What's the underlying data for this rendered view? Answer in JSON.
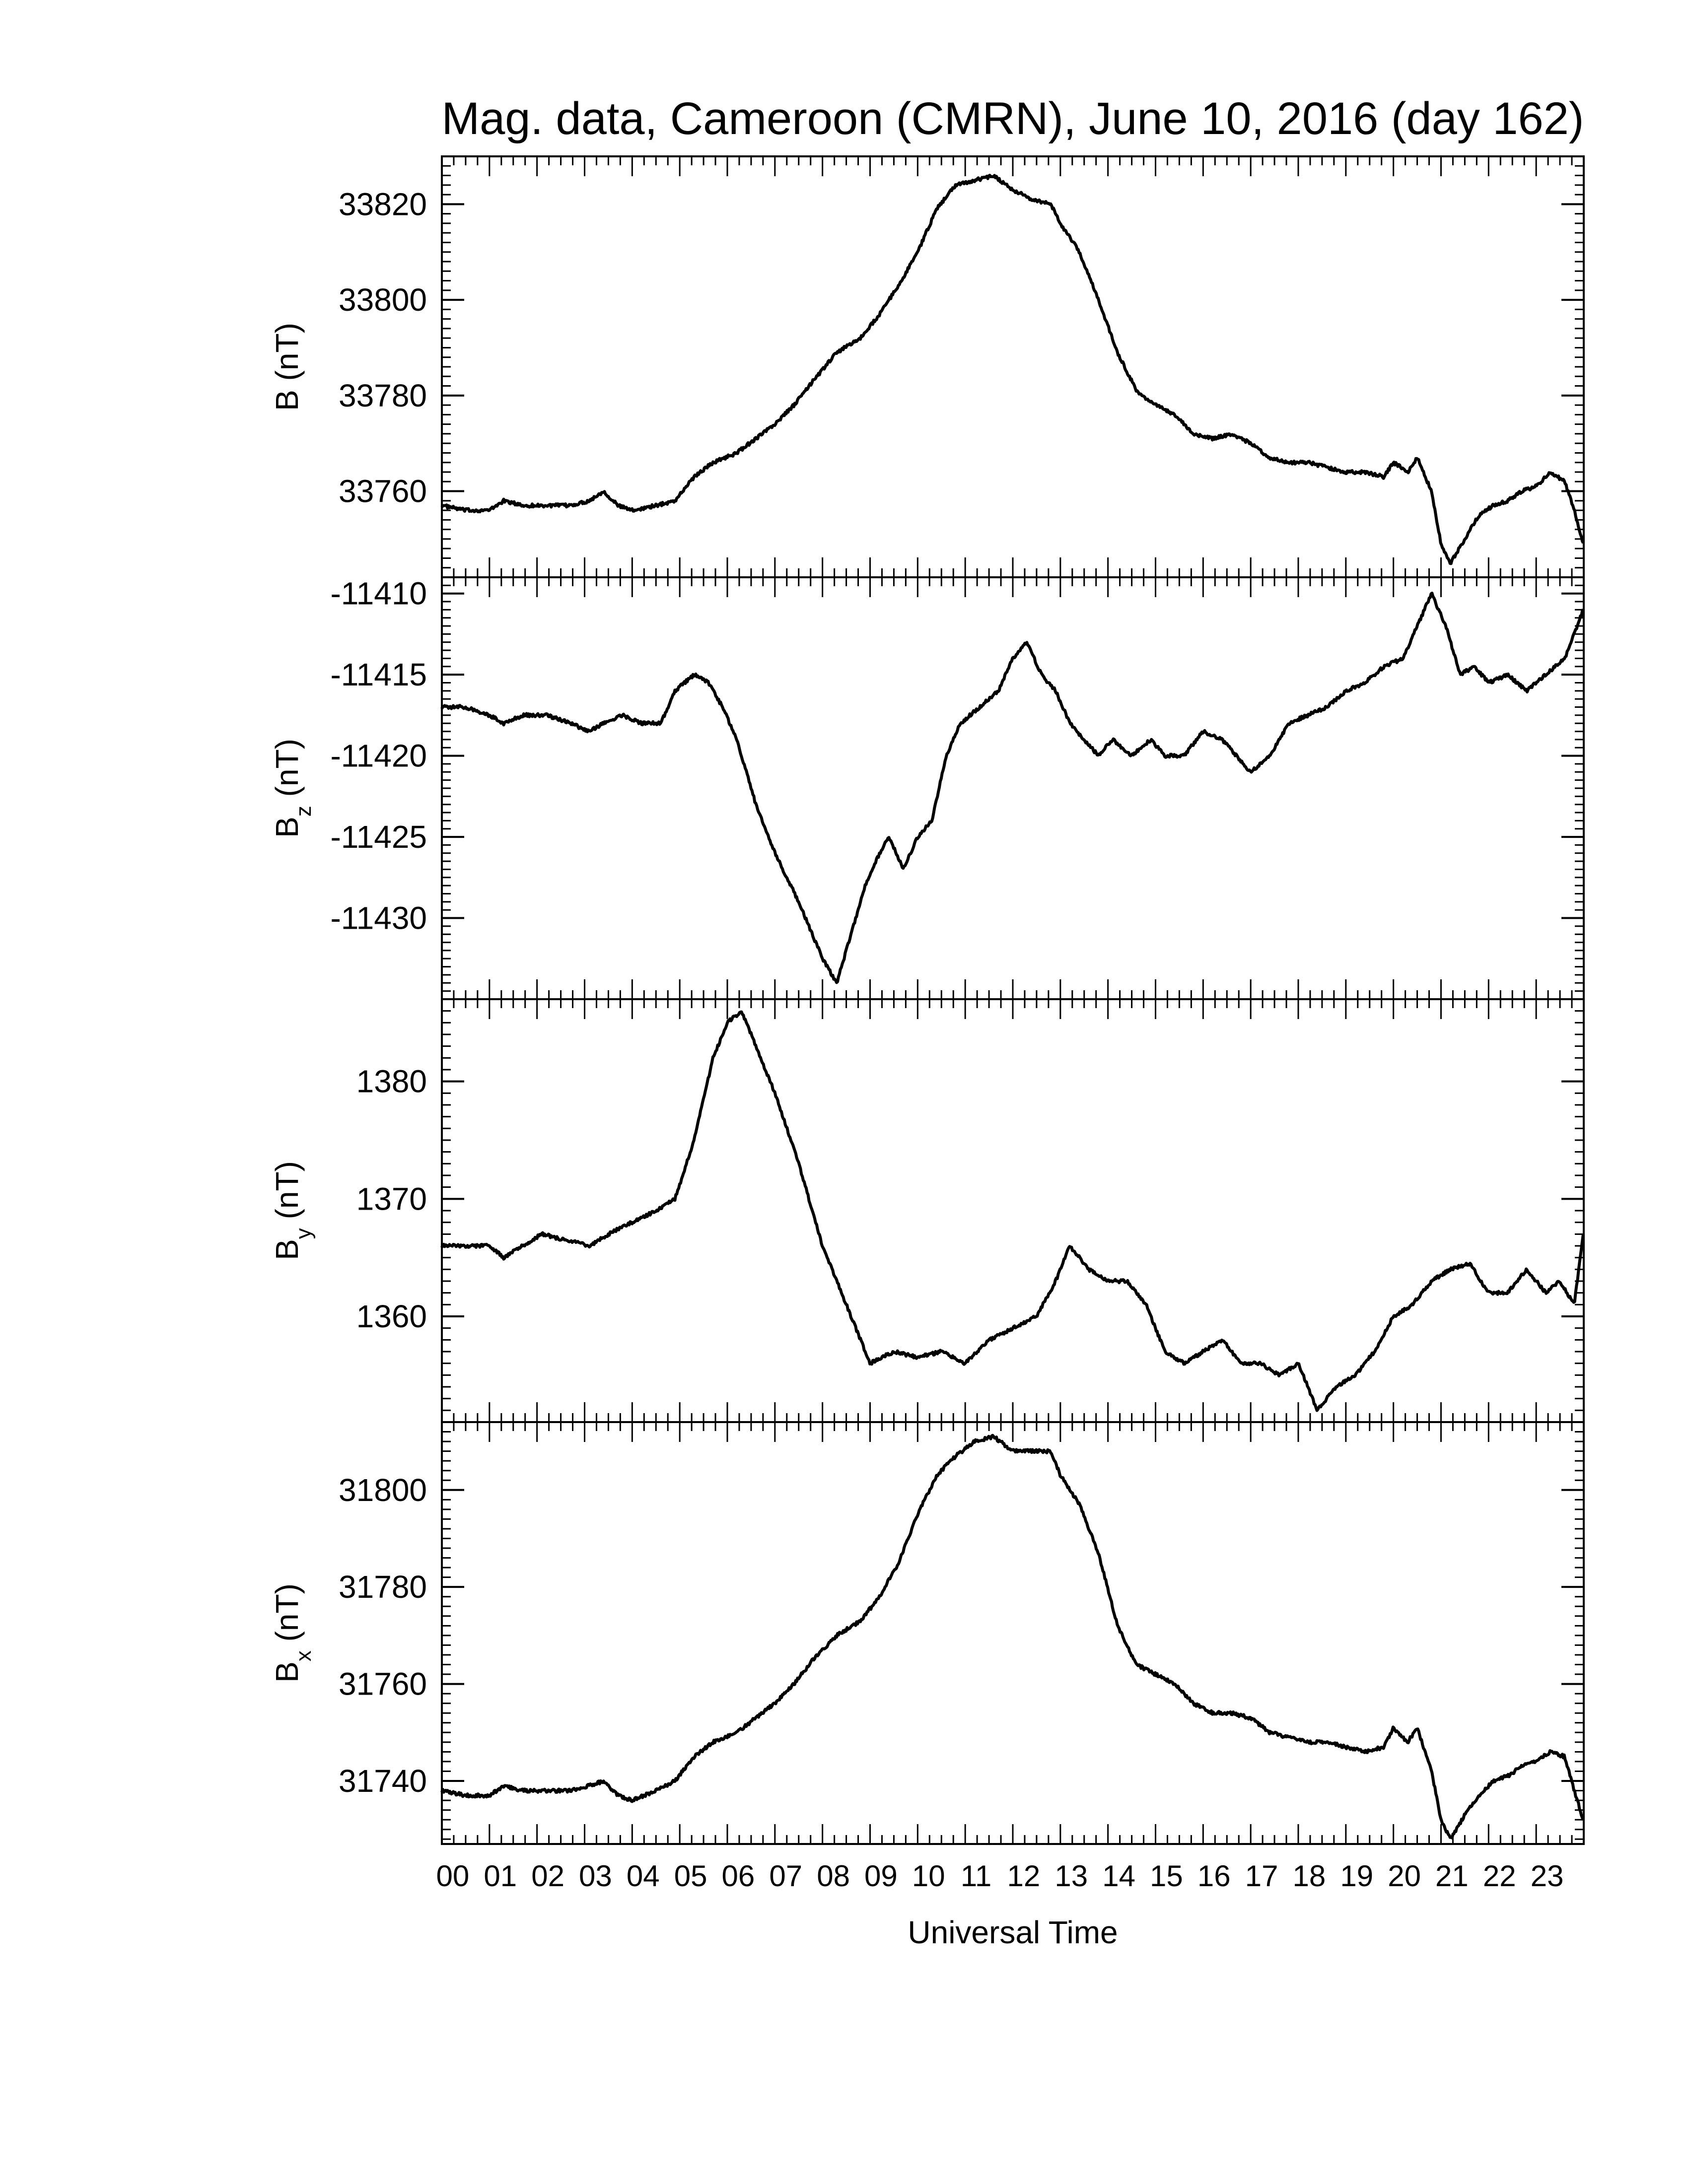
{
  "title": "Mag. data, Cameroon (CMRN), June 10, 2016 (day 162)",
  "chart_data": [
    {
      "type": "line",
      "name": "B",
      "ylabel": "B (nT)",
      "ylim": [
        33742,
        33830
      ],
      "yticks": [
        33760,
        33780,
        33800,
        33820
      ],
      "x": [
        0,
        0.5,
        1,
        1.3,
        1.7,
        2.2,
        2.7,
        3.1,
        3.4,
        3.7,
        4.0,
        4.5,
        4.9,
        5.3,
        5.7,
        6.2,
        6.6,
        7.0,
        7.4,
        7.8,
        8.3,
        8.8,
        9.2,
        9.6,
        10.0,
        10.4,
        10.8,
        11.2,
        11.6,
        12.0,
        12.4,
        12.8,
        13.0,
        13.4,
        13.8,
        14.2,
        14.6,
        15.0,
        15.4,
        15.8,
        16.2,
        16.6,
        17.0,
        17.4,
        17.8,
        18.2,
        18.6,
        19.0,
        19.4,
        19.8,
        20.0,
        20.3,
        20.5,
        20.8,
        21.0,
        21.2,
        21.5,
        21.8,
        22.1,
        22.4,
        22.7,
        23.0,
        23.3,
        23.6,
        23.8,
        23.99
      ],
      "y": [
        33757,
        33756,
        33756,
        33758,
        33757,
        33757,
        33757,
        33758,
        33760,
        33757,
        33756,
        33757,
        33758,
        33763,
        33766,
        33768,
        33771,
        33774,
        33778,
        33783,
        33789,
        33792,
        33797,
        33803,
        33810,
        33819,
        33824,
        33825,
        33826,
        33823,
        33821,
        33820,
        33816,
        33810,
        33800,
        33789,
        33781,
        33778,
        33776,
        33772,
        33771,
        33772,
        33770,
        33767,
        33766,
        33766,
        33765,
        33764,
        33764,
        33763,
        33766,
        33764,
        33767,
        33760,
        33749,
        33745,
        33750,
        33755,
        33757,
        33758,
        33760,
        33761,
        33764,
        33762,
        33756,
        33749
      ]
    },
    {
      "type": "line",
      "name": "Bz",
      "ylabel": "B_z (nT)",
      "ylim": [
        -11435,
        -11409
      ],
      "yticks": [
        -11410,
        -11415,
        -11420,
        -11425,
        -11430
      ],
      "x": [
        0,
        0.5,
        1.0,
        1.3,
        1.7,
        2.2,
        2.7,
        3.1,
        3.4,
        3.8,
        4.2,
        4.6,
        4.9,
        5.3,
        5.6,
        5.9,
        6.2,
        6.6,
        7.0,
        7.5,
        8.0,
        8.3,
        8.6,
        8.9,
        9.2,
        9.4,
        9.7,
        10.0,
        10.3,
        10.6,
        10.9,
        11.3,
        11.7,
        12.0,
        12.3,
        12.6,
        12.9,
        13.2,
        13.5,
        13.8,
        14.1,
        14.5,
        14.9,
        15.2,
        15.6,
        16.0,
        16.4,
        16.7,
        17.0,
        17.4,
        17.8,
        18.2,
        18.6,
        19.0,
        19.4,
        19.8,
        20.2,
        20.5,
        20.8,
        21.1,
        21.4,
        21.7,
        22.0,
        22.4,
        22.8,
        23.2,
        23.6,
        23.99
      ],
      "y": [
        -11417,
        -11417,
        -11417.5,
        -11418,
        -11417.5,
        -11417.5,
        -11418,
        -11418.5,
        -11418,
        -11417.5,
        -11418,
        -11418,
        -11416,
        -11415,
        -11415.5,
        -11417,
        -11419,
        -11423,
        -11426,
        -11429,
        -11432.5,
        -11434,
        -11431,
        -11428,
        -11426,
        -11425,
        -11427,
        -11425,
        -11424,
        -11420,
        -11418,
        -11417,
        -11416,
        -11414,
        -11413,
        -11415,
        -11416,
        -11418,
        -11419,
        -11420,
        -11419,
        -11420,
        -11419,
        -11420,
        -11420,
        -11418.5,
        -11419,
        -11420,
        -11421,
        -11420,
        -11418,
        -11417.5,
        -11417,
        -11416,
        -11415.5,
        -11414.5,
        -11414,
        -11412,
        -11410,
        -11412,
        -11415,
        -11414.5,
        -11415.5,
        -11415,
        -11416,
        -11415,
        -11414,
        -11411
      ]
    },
    {
      "type": "line",
      "name": "By",
      "ylabel": "B_y (nT)",
      "ylim": [
        1351,
        1387
      ],
      "yticks": [
        1360,
        1370,
        1380
      ],
      "x": [
        0,
        0.5,
        1.0,
        1.3,
        1.7,
        2.1,
        2.6,
        3.1,
        3.5,
        4.0,
        4.5,
        4.9,
        5.3,
        5.7,
        6.0,
        6.3,
        6.6,
        7.0,
        7.5,
        8.0,
        8.5,
        9.0,
        9.5,
        10.0,
        10.5,
        11.0,
        11.5,
        12.0,
        12.5,
        12.9,
        13.2,
        13.6,
        14.0,
        14.4,
        14.8,
        15.2,
        15.6,
        16.0,
        16.4,
        16.8,
        17.2,
        17.6,
        18.0,
        18.4,
        18.8,
        19.2,
        19.6,
        20.0,
        20.4,
        20.8,
        21.2,
        21.6,
        22.0,
        22.4,
        22.8,
        23.2,
        23.5,
        23.8,
        23.99
      ],
      "y": [
        1366,
        1366,
        1366,
        1365,
        1366,
        1367,
        1366.5,
        1366,
        1367,
        1368,
        1369,
        1370,
        1375,
        1382,
        1385,
        1386,
        1383,
        1379,
        1373,
        1366,
        1361,
        1356,
        1357,
        1356.5,
        1357,
        1356,
        1358,
        1359,
        1360,
        1363,
        1366,
        1364,
        1363,
        1363,
        1361,
        1357,
        1356,
        1357,
        1358,
        1356,
        1356,
        1355,
        1356,
        1352,
        1354,
        1355,
        1357,
        1360,
        1361,
        1363,
        1364,
        1364.5,
        1362,
        1362,
        1364,
        1362,
        1363,
        1361,
        1367
      ]
    },
    {
      "type": "line",
      "name": "Bx",
      "ylabel": "B_x (nT)",
      "ylim": [
        1731,
        1814
      ],
      "ylim_note": "",
      "yticks": [
        31740,
        31760,
        31780,
        31800
      ],
      "x": [
        0,
        0.5,
        1.0,
        1.3,
        1.7,
        2.2,
        2.7,
        3.1,
        3.4,
        3.7,
        4.0,
        4.5,
        4.9,
        5.3,
        5.7,
        6.2,
        6.6,
        7.0,
        7.4,
        7.8,
        8.3,
        8.8,
        9.2,
        9.6,
        10.0,
        10.4,
        10.8,
        11.2,
        11.6,
        12.0,
        12.4,
        12.8,
        13.0,
        13.4,
        13.8,
        14.2,
        14.6,
        15.0,
        15.4,
        15.8,
        16.2,
        16.6,
        17.0,
        17.4,
        17.8,
        18.2,
        18.6,
        19.0,
        19.4,
        19.8,
        20.0,
        20.3,
        20.5,
        20.8,
        21.0,
        21.2,
        21.5,
        21.8,
        22.1,
        22.4,
        22.7,
        23.0,
        23.3,
        23.6,
        23.8,
        23.99
      ],
      "y": [
        31738,
        31737,
        31737,
        31739,
        31738,
        31738,
        31738,
        31739,
        31740,
        31737,
        31736,
        31738,
        31740,
        31745,
        31748,
        31750,
        31753,
        31756,
        31760,
        31765,
        31770,
        31773,
        31778,
        31785,
        31795,
        31803,
        31807,
        31810,
        31811,
        31808,
        31808,
        31808,
        31803,
        31797,
        31787,
        31772,
        31764,
        31762,
        31760,
        31756,
        31754,
        31754,
        31753,
        31750,
        31749,
        31748,
        31748,
        31747,
        31746,
        31747,
        31751,
        31748,
        31751,
        31742,
        31732,
        31728,
        31733,
        31737,
        31740,
        31741,
        31743,
        31744,
        31746,
        31745,
        31738,
        31732
      ]
    }
  ],
  "x_axis": {
    "label": "Universal Time",
    "range": [
      0,
      24
    ],
    "ticks": [
      "00",
      "01",
      "02",
      "03",
      "04",
      "05",
      "06",
      "07",
      "08",
      "09",
      "10",
      "11",
      "12",
      "13",
      "14",
      "15",
      "16",
      "17",
      "18",
      "19",
      "20",
      "21",
      "22",
      "23"
    ]
  },
  "colors": {
    "line": "#000000",
    "axes": "#000000",
    "background": "#ffffff"
  }
}
